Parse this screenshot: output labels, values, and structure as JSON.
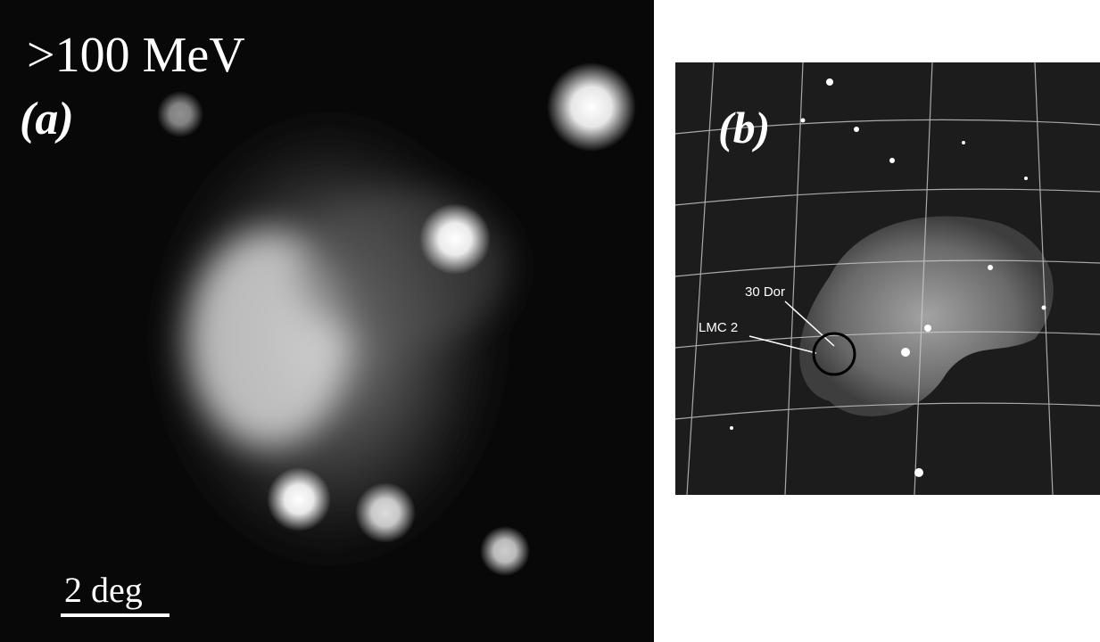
{
  "panels": [
    {
      "energy_label": ">100 MeV",
      "label": "(a)",
      "scale_bar": "2 deg"
    },
    {
      "label": "(b)",
      "annotations": [
        "30 Dor",
        "LMC 2"
      ]
    }
  ]
}
